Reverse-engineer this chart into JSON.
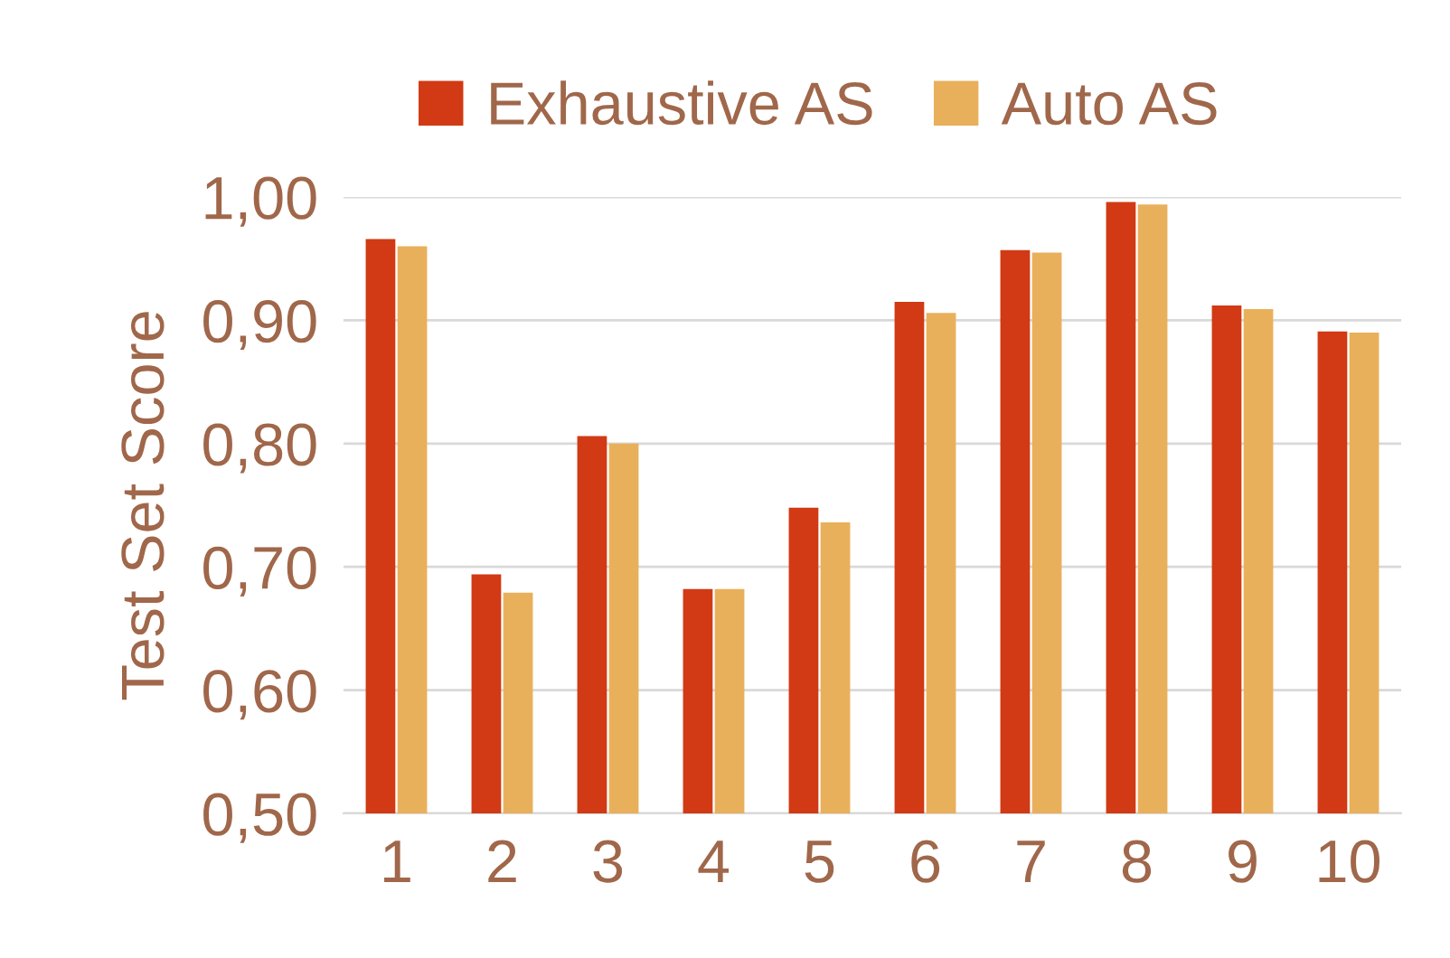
{
  "chart_data": {
    "type": "bar",
    "ylabel": "Test Set Score",
    "categories": [
      "1",
      "2",
      "3",
      "4",
      "5",
      "6",
      "7",
      "8",
      "9",
      "10"
    ],
    "series": [
      {
        "name": "Exhaustive AS",
        "color": "#d13a14",
        "values": [
          0.966,
          0.694,
          0.806,
          0.682,
          0.748,
          0.915,
          0.957,
          0.996,
          0.912,
          0.891
        ]
      },
      {
        "name": "Auto AS",
        "color": "#e9b05c",
        "values": [
          0.96,
          0.679,
          0.8,
          0.682,
          0.736,
          0.906,
          0.955,
          0.994,
          0.909,
          0.89
        ]
      }
    ],
    "ylim": [
      0.5,
      1.0
    ],
    "yticks": [
      {
        "value": 0.5,
        "label": "0,50"
      },
      {
        "value": 0.6,
        "label": "0,60"
      },
      {
        "value": 0.7,
        "label": "0,70"
      },
      {
        "value": 0.8,
        "label": "0,80"
      },
      {
        "value": 0.9,
        "label": "0,90"
      },
      {
        "value": 1.0,
        "label": "1,00"
      }
    ],
    "grid": "y",
    "legend": "top"
  }
}
